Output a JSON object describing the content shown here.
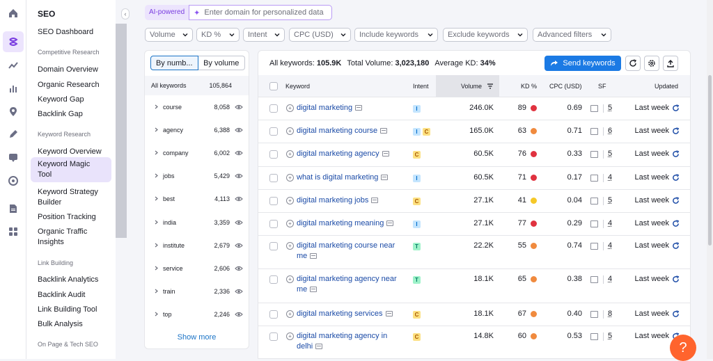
{
  "sidebar": {
    "title": "SEO",
    "dashboard": "SEO Dashboard",
    "sections": [
      {
        "label": "Competitive Research",
        "items": [
          "Domain Overview",
          "Organic Research",
          "Keyword Gap",
          "Backlink Gap"
        ]
      },
      {
        "label": "Keyword Research",
        "items": [
          "Keyword Overview",
          "Keyword Magic Tool",
          "Keyword Strategy Builder",
          "Position Tracking",
          "Organic Traffic Insights"
        ]
      },
      {
        "label": "Link Building",
        "items": [
          "Backlink Analytics",
          "Backlink Audit",
          "Link Building Tool",
          "Bulk Analysis"
        ]
      },
      {
        "label": "On Page & Tech SEO",
        "items": []
      }
    ],
    "active_item": "Keyword Magic Tool"
  },
  "ai": {
    "badge": "AI-powered",
    "placeholder": "Enter domain for personalized data"
  },
  "filters": [
    "Volume",
    "KD %",
    "Intent",
    "CPC (USD)",
    "Include keywords",
    "Exclude keywords",
    "Advanced filters"
  ],
  "groups": {
    "toggle": [
      "By numb...",
      "By volume"
    ],
    "header": {
      "label": "All keywords",
      "count": "105,864"
    },
    "rows": [
      {
        "kw": "course",
        "count": "8,058"
      },
      {
        "kw": "agency",
        "count": "6,388"
      },
      {
        "kw": "company",
        "count": "6,002"
      },
      {
        "kw": "jobs",
        "count": "5,429"
      },
      {
        "kw": "best",
        "count": "4,113"
      },
      {
        "kw": "india",
        "count": "3,359"
      },
      {
        "kw": "institute",
        "count": "2,679"
      },
      {
        "kw": "service",
        "count": "2,606"
      },
      {
        "kw": "train",
        "count": "2,336"
      },
      {
        "kw": "top",
        "count": "2,246"
      }
    ],
    "show_more": "Show more"
  },
  "summary": {
    "all_label": "All keywords:",
    "all_value": "105.9K",
    "vol_label": "Total Volume:",
    "vol_value": "3,023,180",
    "kd_label": "Average KD:",
    "kd_value": "34%"
  },
  "toolbar": {
    "send": "Send keywords"
  },
  "table": {
    "headers": {
      "keyword": "Keyword",
      "intent": "Intent",
      "volume": "Volume",
      "kd": "KD %",
      "cpc": "CPC (USD)",
      "sf": "SF",
      "updated": "Updated"
    },
    "colors": {
      "red": "#e0323f",
      "orange": "#f08a3e",
      "yellow": "#f5c828"
    },
    "rows": [
      {
        "line1": "digital marketing",
        "line2": "",
        "intents": [
          "I"
        ],
        "volume": "246.0K",
        "kd": "89",
        "kdc": "red",
        "cpc": "0.69",
        "sf": "5",
        "updated": "Last week"
      },
      {
        "line1": "digital marketing course",
        "line2": "",
        "intents": [
          "I",
          "C"
        ],
        "volume": "165.0K",
        "kd": "63",
        "kdc": "orange",
        "cpc": "0.71",
        "sf": "6",
        "updated": "Last week"
      },
      {
        "line1": "digital marketing agency",
        "line2": "",
        "intents": [
          "C"
        ],
        "volume": "60.5K",
        "kd": "76",
        "kdc": "red",
        "cpc": "0.33",
        "sf": "5",
        "updated": "Last week"
      },
      {
        "line1": "what is digital marketing",
        "line2": "",
        "intents": [
          "I"
        ],
        "volume": "60.5K",
        "kd": "71",
        "kdc": "red",
        "cpc": "0.17",
        "sf": "4",
        "updated": "Last week"
      },
      {
        "line1": "digital marketing jobs",
        "line2": "",
        "intents": [
          "C"
        ],
        "volume": "27.1K",
        "kd": "41",
        "kdc": "yellow",
        "cpc": "0.04",
        "sf": "5",
        "updated": "Last week"
      },
      {
        "line1": "digital marketing meaning",
        "line2": "",
        "intents": [
          "I"
        ],
        "volume": "27.1K",
        "kd": "77",
        "kdc": "red",
        "cpc": "0.29",
        "sf": "4",
        "updated": "Last week"
      },
      {
        "line1": "digital marketing course near",
        "line2": "me",
        "intents": [
          "T"
        ],
        "volume": "22.2K",
        "kd": "55",
        "kdc": "orange",
        "cpc": "0.74",
        "sf": "4",
        "updated": "Last week"
      },
      {
        "line1": "digital marketing agency near",
        "line2": "me",
        "intents": [
          "T"
        ],
        "volume": "18.1K",
        "kd": "65",
        "kdc": "orange",
        "cpc": "0.38",
        "sf": "4",
        "updated": "Last week"
      },
      {
        "line1": "digital marketing services",
        "line2": "",
        "intents": [
          "C"
        ],
        "volume": "18.1K",
        "kd": "67",
        "kdc": "orange",
        "cpc": "0.40",
        "sf": "8",
        "updated": "Last week"
      },
      {
        "line1": "digital marketing agency in",
        "line2": "delhi",
        "intents": [
          "C"
        ],
        "volume": "14.8K",
        "kd": "60",
        "kdc": "orange",
        "cpc": "0.53",
        "sf": "5",
        "updated": "Last week"
      }
    ]
  },
  "help": "?"
}
